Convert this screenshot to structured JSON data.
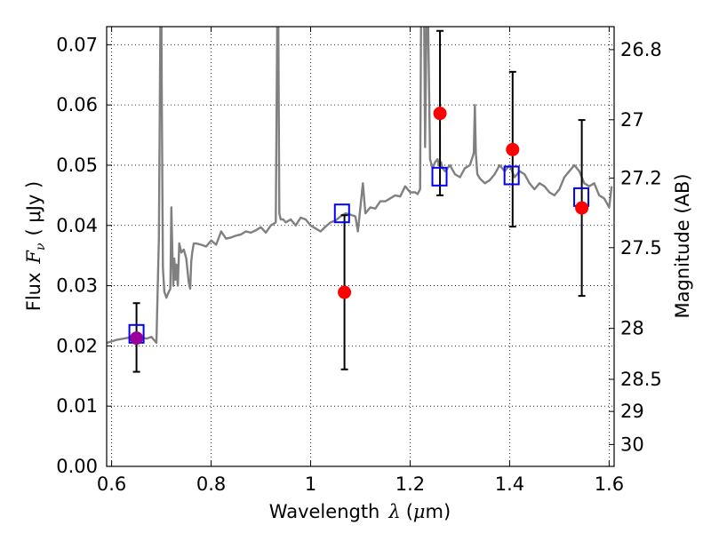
{
  "chart_data": {
    "type": "scatter",
    "xlabel_prefix": "Wavelength",
    "xlabel_sym": "λ",
    "xlabel_unit_open": "(",
    "xlabel_unit_mu": "μ",
    "xlabel_unit_rest": "m)",
    "ylabel_prefix": "Flux",
    "ylabel_sym": "F",
    "ylabel_sub": "ν",
    "ylabel_unit": "( μJy )",
    "y2label": "Magnitude (AB)",
    "xlim": [
      0.59,
      1.61
    ],
    "ylim": [
      0.0,
      0.073
    ],
    "grid": true,
    "x_ticks": [
      {
        "v": 0.6,
        "label": "0.6"
      },
      {
        "v": 0.8,
        "label": "0.8"
      },
      {
        "v": 1.0,
        "label": "1"
      },
      {
        "v": 1.2,
        "label": "1.2"
      },
      {
        "v": 1.4,
        "label": "1.4"
      },
      {
        "v": 1.6,
        "label": "1.6"
      }
    ],
    "y_ticks": [
      {
        "v": 0.0,
        "label": "0.00"
      },
      {
        "v": 0.01,
        "label": "0.01"
      },
      {
        "v": 0.02,
        "label": "0.02"
      },
      {
        "v": 0.03,
        "label": "0.03"
      },
      {
        "v": 0.04,
        "label": "0.04"
      },
      {
        "v": 0.05,
        "label": "0.05"
      },
      {
        "v": 0.06,
        "label": "0.06"
      },
      {
        "v": 0.07,
        "label": "0.07"
      }
    ],
    "y2_ticks": [
      {
        "mag": 26.8,
        "label": "26.8"
      },
      {
        "mag": 27.0,
        "label": "27"
      },
      {
        "mag": 27.2,
        "label": "27.2"
      },
      {
        "mag": 27.5,
        "label": "27.5"
      },
      {
        "mag": 28.0,
        "label": "28"
      },
      {
        "mag": 28.5,
        "label": "28.5"
      },
      {
        "mag": 29.0,
        "label": "29"
      },
      {
        "mag": 30.0,
        "label": "30"
      }
    ],
    "colors": {
      "template": "#808080",
      "observed": "#ff0000",
      "overlap": "#990099",
      "model": "#0000ff",
      "errorbar": "#000000"
    },
    "series": [
      {
        "kind": "line",
        "role": "template-spectrum",
        "x": [
          0.59,
          0.61,
          0.63,
          0.65,
          0.67,
          0.68,
          0.69,
          0.695,
          0.698,
          0.699,
          0.7,
          0.701,
          0.703,
          0.706,
          0.71,
          0.715,
          0.718,
          0.72,
          0.722,
          0.724,
          0.726,
          0.728,
          0.73,
          0.733,
          0.736,
          0.74,
          0.745,
          0.75,
          0.755,
          0.758,
          0.76,
          0.762,
          0.765,
          0.77,
          0.78,
          0.79,
          0.8,
          0.81,
          0.82,
          0.83,
          0.84,
          0.85,
          0.86,
          0.87,
          0.88,
          0.89,
          0.9,
          0.91,
          0.92,
          0.93,
          0.933,
          0.935,
          0.937,
          0.94,
          0.945,
          0.95,
          0.96,
          0.97,
          0.98,
          0.99,
          1.0,
          1.01,
          1.02,
          1.03,
          1.04,
          1.05,
          1.06,
          1.07,
          1.08,
          1.09,
          1.095,
          1.1,
          1.105,
          1.11,
          1.115,
          1.12,
          1.13,
          1.14,
          1.15,
          1.16,
          1.17,
          1.18,
          1.19,
          1.2,
          1.21,
          1.215,
          1.22,
          1.222,
          1.225,
          1.228,
          1.23,
          1.233,
          1.236,
          1.24,
          1.245,
          1.25,
          1.255,
          1.258,
          1.262,
          1.265,
          1.27,
          1.28,
          1.29,
          1.3,
          1.31,
          1.32,
          1.328,
          1.33,
          1.332,
          1.335,
          1.34,
          1.35,
          1.36,
          1.37,
          1.38,
          1.39,
          1.4,
          1.41,
          1.42,
          1.43,
          1.44,
          1.45,
          1.46,
          1.47,
          1.48,
          1.49,
          1.5,
          1.51,
          1.52,
          1.53,
          1.54,
          1.55,
          1.56,
          1.57,
          1.58,
          1.59,
          1.6,
          1.605
        ],
        "y": [
          0.0205,
          0.021,
          0.0213,
          0.0216,
          0.0212,
          0.0215,
          0.0205,
          0.038,
          0.075,
          0.075,
          0.075,
          0.06,
          0.033,
          0.029,
          0.028,
          0.029,
          0.0295,
          0.043,
          0.036,
          0.03,
          0.0345,
          0.031,
          0.0335,
          0.03,
          0.037,
          0.0355,
          0.036,
          0.0345,
          0.0305,
          0.0295,
          0.034,
          0.0355,
          0.037,
          0.037,
          0.0368,
          0.0365,
          0.0375,
          0.0368,
          0.039,
          0.0378,
          0.038,
          0.0383,
          0.0385,
          0.039,
          0.0388,
          0.0392,
          0.0397,
          0.0388,
          0.04,
          0.0405,
          0.075,
          0.075,
          0.042,
          0.041,
          0.041,
          0.0405,
          0.041,
          0.04,
          0.0413,
          0.041,
          0.04,
          0.0395,
          0.039,
          0.0398,
          0.0405,
          0.0408,
          0.0415,
          0.042,
          0.0418,
          0.0415,
          0.039,
          0.043,
          0.047,
          0.042,
          0.0425,
          0.043,
          0.0428,
          0.044,
          0.044,
          0.0445,
          0.045,
          0.0448,
          0.0465,
          0.0455,
          0.0455,
          0.0452,
          0.046,
          0.075,
          0.075,
          0.075,
          0.053,
          0.075,
          0.075,
          0.051,
          0.0495,
          0.0505,
          0.051,
          0.05,
          0.0505,
          0.0495,
          0.049,
          0.05,
          0.0485,
          0.048,
          0.0495,
          0.05,
          0.052,
          0.06,
          0.052,
          0.0485,
          0.0478,
          0.047,
          0.0475,
          0.0485,
          0.05,
          0.049,
          0.05,
          0.048,
          0.049,
          0.0485,
          0.047,
          0.046,
          0.047,
          0.0465,
          0.0455,
          0.045,
          0.046,
          0.048,
          0.049,
          0.05,
          0.049,
          0.047,
          0.0465,
          0.047,
          0.045,
          0.0445,
          0.043,
          0.0465
        ]
      },
      {
        "kind": "points",
        "role": "observed",
        "marker": "circle",
        "x": [
          0.65,
          1.068,
          1.26,
          1.406,
          1.545
        ],
        "y": [
          0.0213,
          0.0289,
          0.0586,
          0.0526,
          0.0429
        ],
        "yerr_low": [
          0.0157,
          0.0161,
          0.045,
          0.0398,
          0.0283
        ],
        "yerr_high": [
          0.0271,
          0.0417,
          0.0723,
          0.0655,
          0.0575
        ]
      },
      {
        "kind": "points",
        "role": "model-photometry",
        "marker": "square",
        "x": [
          0.65,
          1.063,
          1.259,
          1.404,
          1.544
        ],
        "y": [
          0.022,
          0.042,
          0.0481,
          0.0483,
          0.0447
        ]
      }
    ]
  }
}
